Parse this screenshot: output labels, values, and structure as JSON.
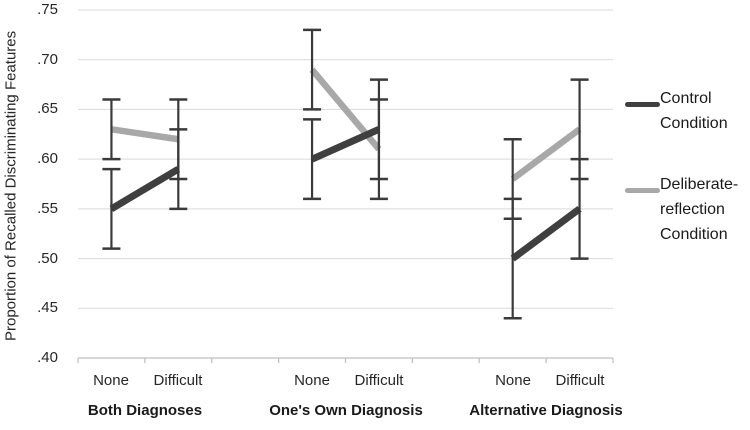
{
  "chart_data": {
    "type": "line",
    "title": "",
    "ylabel": "Proportion of Recalled Discriminating Features",
    "xlabel": "",
    "ylim": [
      0.4,
      0.75
    ],
    "ytick_step": 0.05,
    "ytick_labels": [
      ".75",
      ".70",
      ".65",
      ".60",
      ".55",
      ".50",
      ".45",
      ".40"
    ],
    "grid": "horizontal",
    "groups": [
      "Both Diagnoses",
      "One's Own Diagnosis",
      "Alternative Diagnosis"
    ],
    "categories": [
      "None",
      "Difficult"
    ],
    "series": [
      {
        "name": "Control Condition",
        "color": "#3f3f3f",
        "line_width": 7,
        "values": [
          [
            0.55,
            0.59
          ],
          [
            0.6,
            0.63
          ],
          [
            0.5,
            0.55
          ]
        ],
        "error_low": [
          [
            0.51,
            0.55
          ],
          [
            0.56,
            0.58
          ],
          [
            0.44,
            0.5
          ]
        ],
        "error_high": [
          [
            0.59,
            0.63
          ],
          [
            0.64,
            0.68
          ],
          [
            0.56,
            0.6
          ]
        ]
      },
      {
        "name": "Deliberate-reflection Condition",
        "color": "#a8a8a8",
        "line_width": 6.5,
        "values": [
          [
            0.63,
            0.62
          ],
          [
            0.69,
            0.61
          ],
          [
            0.58,
            0.63
          ]
        ],
        "error_low": [
          [
            0.6,
            0.58
          ],
          [
            0.65,
            0.56
          ],
          [
            0.54,
            0.58
          ]
        ],
        "error_high": [
          [
            0.66,
            0.66
          ],
          [
            0.73,
            0.66
          ],
          [
            0.62,
            0.68
          ]
        ]
      }
    ],
    "error_bar_color": "#3a3a3a",
    "gridline_color": "#d9d9d9",
    "axis_color": "#bfbfbf",
    "legend": {
      "position": "right",
      "entries": [
        {
          "label_lines": [
            "Control",
            "Condition"
          ]
        },
        {
          "label_lines": [
            "Deliberate-",
            "reflection",
            "Condition"
          ]
        }
      ]
    }
  }
}
